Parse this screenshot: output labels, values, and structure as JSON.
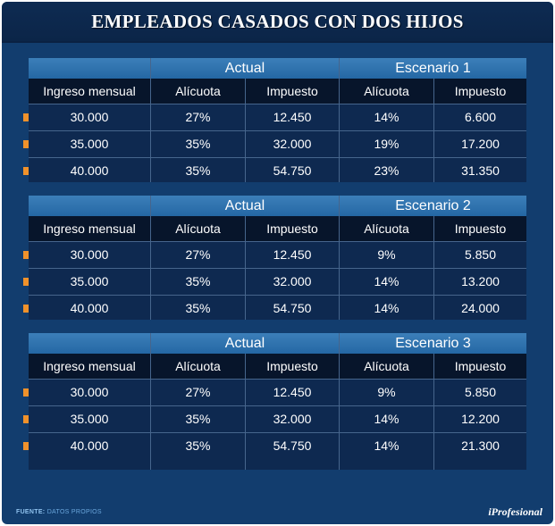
{
  "title": "EMPLEADOS CASADOS CON DOS HIJOS",
  "footer": {
    "source_label": "FUENTE:",
    "source_text": "DATOS PROPIOS",
    "logo": "iProfesional"
  },
  "colors": {
    "background": "#123d6e",
    "header_blue": "#2f74b0",
    "subheader": "#07152b",
    "bullet": "#f0922b"
  },
  "chart_data": {
    "type": "table",
    "title": "EMPLEADOS CASADOS CON DOS HIJOS",
    "tables": [
      {
        "group_left": "Actual",
        "group_right": "Escenario 1",
        "columns": [
          "Ingreso mensual",
          "Alícuota",
          "Impuesto",
          "Alícuota",
          "Impuesto"
        ],
        "rows": [
          [
            "30.000",
            "27%",
            "12.450",
            "14%",
            "6.600"
          ],
          [
            "35.000",
            "35%",
            "32.000",
            "19%",
            "17.200"
          ],
          [
            "40.000",
            "35%",
            "54.750",
            "23%",
            "31.350"
          ]
        ]
      },
      {
        "group_left": "Actual",
        "group_right": "Escenario 2",
        "columns": [
          "Ingreso mensual",
          "Alícuota",
          "Impuesto",
          "Alícuota",
          "Impuesto"
        ],
        "rows": [
          [
            "30.000",
            "27%",
            "12.450",
            "9%",
            "5.850"
          ],
          [
            "35.000",
            "35%",
            "32.000",
            "14%",
            "13.200"
          ],
          [
            "40.000",
            "35%",
            "54.750",
            "14%",
            "24.000"
          ]
        ]
      },
      {
        "group_left": "Actual",
        "group_right": "Escenario 3",
        "columns": [
          "Ingreso mensual",
          "Alícuota",
          "Impuesto",
          "Alícuota",
          "Impuesto"
        ],
        "rows": [
          [
            "30.000",
            "27%",
            "12.450",
            "9%",
            "5.850"
          ],
          [
            "35.000",
            "35%",
            "32.000",
            "14%",
            "12.200"
          ],
          [
            "40.000",
            "35%",
            "54.750",
            "14%",
            "21.300"
          ]
        ]
      }
    ]
  }
}
